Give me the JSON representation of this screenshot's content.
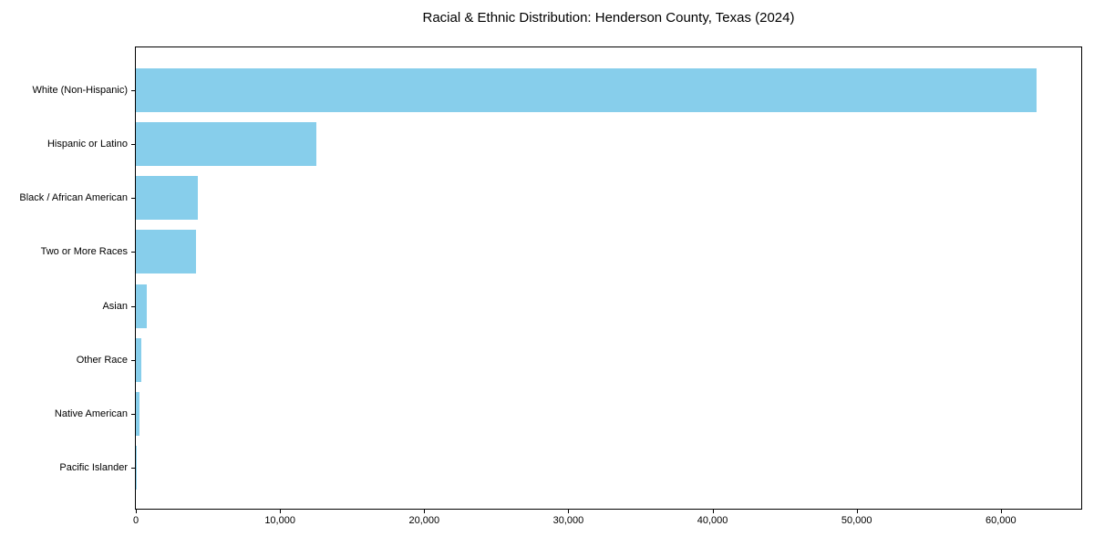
{
  "page": {
    "background": "#ffffff"
  },
  "chart_data": {
    "type": "bar",
    "orientation": "horizontal",
    "title": "Racial & Ethnic Distribution: Henderson County, Texas (2024)",
    "categories": [
      "White (Non-Hispanic)",
      "Hispanic or Latino",
      "Black / African American",
      "Two or More Races",
      "Asian",
      "Other Race",
      "Native American",
      "Pacific Islander"
    ],
    "values": [
      62500,
      12500,
      4300,
      4150,
      750,
      350,
      250,
      50
    ],
    "xlabel": "",
    "ylabel": "",
    "xlim": [
      0,
      65700
    ],
    "xticks": [
      0,
      10000,
      20000,
      30000,
      40000,
      50000,
      60000
    ],
    "xtick_labels": [
      "0",
      "10,000",
      "20,000",
      "30,000",
      "40,000",
      "50,000",
      "60,000"
    ],
    "bar_color": "#87CEEB",
    "axis_color": "#000000",
    "grid": false,
    "legend": "none"
  }
}
